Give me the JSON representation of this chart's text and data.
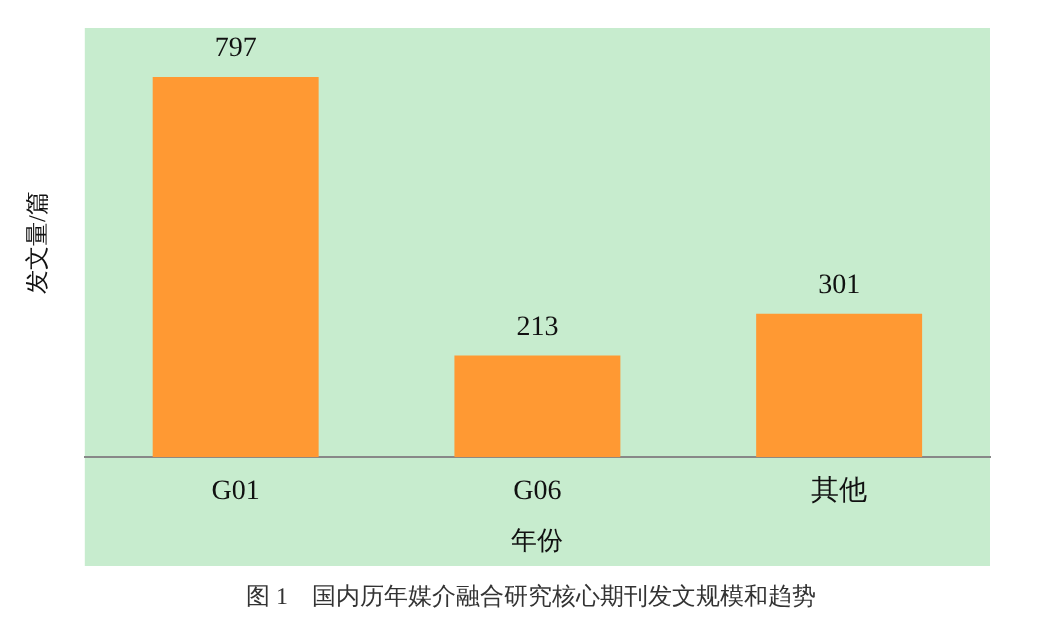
{
  "chart_data": {
    "type": "bar",
    "categories": [
      "G01",
      "G06",
      "其他"
    ],
    "values": [
      797,
      213,
      301
    ],
    "color": "#ff9933",
    "ylabel": "发文量/篇",
    "xlabel": "年份",
    "data_labels": true,
    "grid": false,
    "legend": false,
    "tick_labels": "x",
    "annotations": [
      "图 1　国内历年媒介融合研究核心期刊发文规模和趋势"
    ]
  }
}
